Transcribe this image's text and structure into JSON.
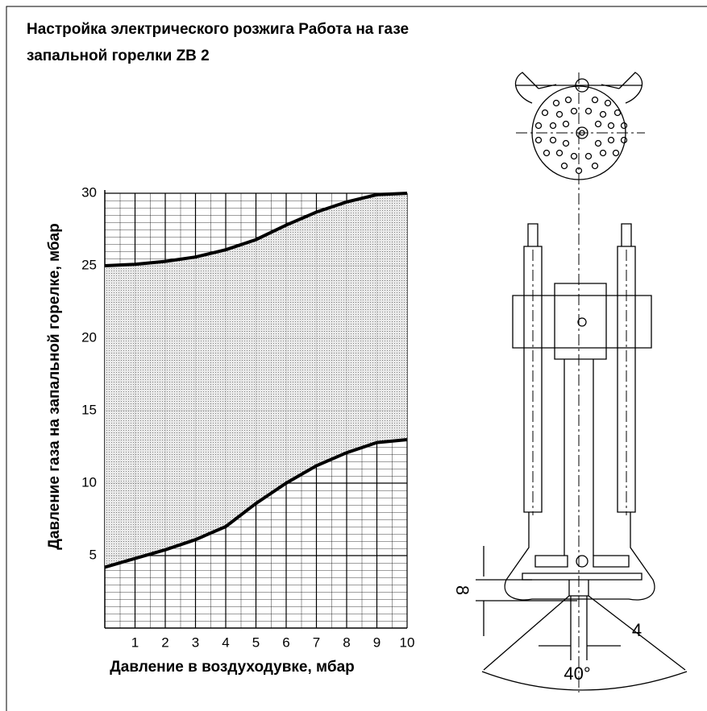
{
  "title_lines": [
    "Настройка электрического розжига Работа на газе",
    "запальной горелки ZB 2"
  ],
  "chart_data": {
    "type": "band",
    "x_label": "Давление в воздуходувке, мбар",
    "y_label": "Давление газа на запальной горелке, мбар",
    "x": [
      0,
      1,
      2,
      3,
      4,
      5,
      6,
      7,
      8,
      9,
      10
    ],
    "series": [
      {
        "color": "#000000",
        "values": [
          4.2,
          4.8,
          5.4,
          6.1,
          7.0,
          8.6,
          10.0,
          11.2,
          12.1,
          12.8,
          13.0
        ]
      },
      {
        "color": "#000000",
        "values": [
          25.0,
          25.1,
          25.3,
          25.6,
          26.1,
          26.8,
          27.8,
          28.7,
          29.4,
          29.9,
          30.0
        ]
      }
    ],
    "fill": "#c8c8c8",
    "xlim": [
      0,
      10
    ],
    "xticks": [
      1,
      2,
      3,
      4,
      5,
      6,
      7,
      8,
      9,
      10
    ],
    "ylim": [
      0,
      30
    ],
    "yticks": [
      5,
      10,
      15,
      20,
      25,
      30
    ],
    "grid": true
  },
  "drawing": {
    "gap_label": "8",
    "offset_label": "4",
    "angle_label": "40°"
  }
}
